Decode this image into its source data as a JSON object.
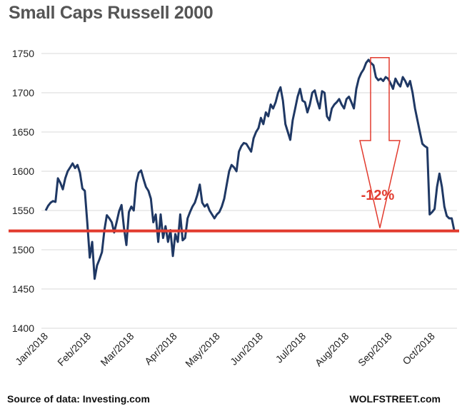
{
  "chart_data": {
    "type": "line",
    "title": "Small Caps Russell 2000",
    "xlabel": "",
    "ylabel": "",
    "ylim": [
      1400,
      1750
    ],
    "yticks": [
      1400,
      1450,
      1500,
      1550,
      1600,
      1650,
      1700,
      1750
    ],
    "xtick_labels": [
      "Jan/2018",
      "Feb/2018",
      "Mar/2018",
      "Apr/2018",
      "May/2018",
      "Jun/2018",
      "Jul/2018",
      "Aug/2018",
      "Sep/2018",
      "Oct/2018"
    ],
    "grid": "horizontal",
    "series": [
      {
        "color": "#1f3864",
        "values": [
          1550,
          1556,
          1560,
          1562,
          1561,
          1591,
          1585,
          1577,
          1591,
          1600,
          1605,
          1610,
          1604,
          1608,
          1598,
          1578,
          1575,
          1535,
          1490,
          1510,
          1463,
          1480,
          1488,
          1497,
          1525,
          1544,
          1540,
          1535,
          1522,
          1535,
          1549,
          1557,
          1528,
          1506,
          1548,
          1555,
          1550,
          1585,
          1598,
          1601,
          1590,
          1580,
          1575,
          1565,
          1535,
          1545,
          1510,
          1545,
          1515,
          1530,
          1510,
          1525,
          1492,
          1520,
          1510,
          1545,
          1512,
          1515,
          1540,
          1548,
          1555,
          1560,
          1570,
          1583,
          1560,
          1555,
          1558,
          1550,
          1545,
          1540,
          1545,
          1548,
          1555,
          1565,
          1583,
          1600,
          1608,
          1605,
          1600,
          1625,
          1632,
          1636,
          1635,
          1630,
          1625,
          1642,
          1650,
          1655,
          1668,
          1660,
          1675,
          1670,
          1685,
          1680,
          1688,
          1700,
          1707,
          1690,
          1660,
          1650,
          1640,
          1665,
          1680,
          1695,
          1705,
          1690,
          1688,
          1675,
          1685,
          1700,
          1703,
          1690,
          1680,
          1702,
          1700,
          1670,
          1665,
          1680,
          1685,
          1688,
          1692,
          1685,
          1680,
          1692,
          1695,
          1688,
          1680,
          1705,
          1718,
          1725,
          1730,
          1738,
          1742,
          1738,
          1735,
          1720,
          1716,
          1718,
          1715,
          1720,
          1718,
          1712,
          1705,
          1718,
          1712,
          1708,
          1720,
          1715,
          1708,
          1715,
          1700,
          1680,
          1665,
          1650,
          1635,
          1632,
          1630,
          1545,
          1548,
          1552,
          1580,
          1597,
          1580,
          1555,
          1543,
          1540,
          1540,
          1525
        ]
      }
    ],
    "reference_line": {
      "value": 1524,
      "color": "#e23b2e"
    },
    "annotation": {
      "label": "-12%",
      "color": "#e23b2e",
      "from_value": 1743,
      "to_value": 1524
    }
  },
  "footer": {
    "source": "Source of data: Investing.com",
    "brand": "WOLFSTREET.com"
  }
}
